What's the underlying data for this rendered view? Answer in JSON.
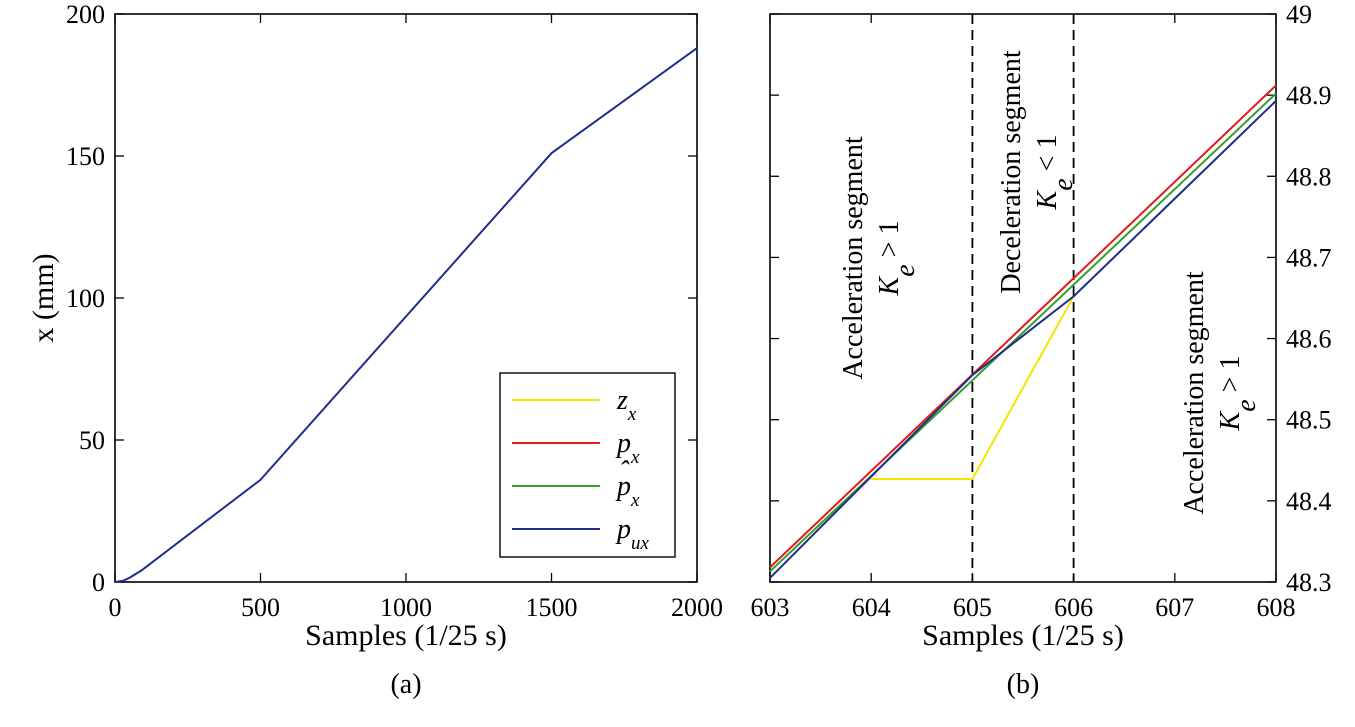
{
  "chart_data": [
    {
      "type": "line",
      "panel_label": "(a)",
      "xlabel": "Samples (1/25 s)",
      "ylabel": "x (mm)",
      "xlim": [
        0,
        2000
      ],
      "ylim": [
        0,
        200
      ],
      "xticks": [
        0,
        500,
        1000,
        1500,
        2000
      ],
      "yticks": [
        0,
        50,
        100,
        150,
        200
      ],
      "xtick_labels": [
        "0",
        "500",
        "1000",
        "1500",
        "2000"
      ],
      "ytick_labels": [
        "0",
        "50",
        "100",
        "150",
        "200"
      ],
      "legend_position": "bottom-right",
      "series": [
        {
          "name": "p_ux",
          "color": "#1f2e8c",
          "x": [
            0,
            30,
            50,
            90,
            500,
            1500,
            2000
          ],
          "y": [
            0,
            0.5,
            1.5,
            4,
            36,
            151,
            188
          ]
        }
      ],
      "legend": {
        "entries": [
          {
            "text": "z",
            "sub": "x",
            "hat": false,
            "color": "#f2e600"
          },
          {
            "text": "p",
            "sub": "x",
            "hat": false,
            "color": "#e31a1c"
          },
          {
            "text": "p",
            "sub": "x",
            "hat": true,
            "color": "#33a02c"
          },
          {
            "text": "p",
            "sub": "ux",
            "hat": false,
            "color": "#1f2e8c"
          }
        ]
      }
    },
    {
      "type": "line",
      "panel_label": "(b)",
      "xlabel": "Samples (1/25 s)",
      "xlim": [
        603,
        608
      ],
      "ylim": [
        48.3,
        49
      ],
      "xticks": [
        603,
        604,
        605,
        606,
        607,
        608
      ],
      "yticks": [
        48.3,
        48.4,
        48.5,
        48.6,
        48.7,
        48.8,
        48.9,
        49
      ],
      "xtick_labels": [
        "603",
        "604",
        "605",
        "606",
        "607",
        "608"
      ],
      "ytick_labels": [
        "48.3",
        "48.4",
        "48.5",
        "48.6",
        "48.7",
        "48.8",
        "48.9",
        "49"
      ],
      "y_axis_side": "right",
      "vertical_dashed_lines": [
        605,
        606
      ],
      "series": [
        {
          "name": "z_x",
          "color": "#f2e600",
          "x": [
            604,
            605,
            606
          ],
          "y": [
            48.427,
            48.427,
            48.652
          ]
        },
        {
          "name": "p_x",
          "color": "#e31a1c",
          "x": [
            603,
            608
          ],
          "y": [
            48.318,
            48.912
          ]
        },
        {
          "name": "p_hat_x",
          "color": "#33a02c",
          "x": [
            603,
            608
          ],
          "y": [
            48.313,
            48.902
          ]
        },
        {
          "name": "p_ux",
          "color": "#1f2e8c",
          "x": [
            603,
            605,
            606,
            608
          ],
          "y": [
            48.305,
            48.555,
            48.652,
            48.893
          ]
        }
      ],
      "annotations": [
        {
          "lines": [
            "Acceleration segment",
            "K_e > 1"
          ],
          "label": "Acceleration segment",
          "cond_main": "K",
          "cond_sub": "e",
          "cond_rel": " > 1"
        },
        {
          "lines": [
            "Deceleration  segment",
            "K_e < 1"
          ],
          "label": "Deceleration  segment",
          "cond_main": "K",
          "cond_sub": "e",
          "cond_rel": " < 1"
        },
        {
          "lines": [
            "Acceleration segment",
            "K_e > 1"
          ],
          "label": "Acceleration segment",
          "cond_main": "K",
          "cond_sub": "e",
          "cond_rel": " > 1"
        }
      ]
    }
  ]
}
